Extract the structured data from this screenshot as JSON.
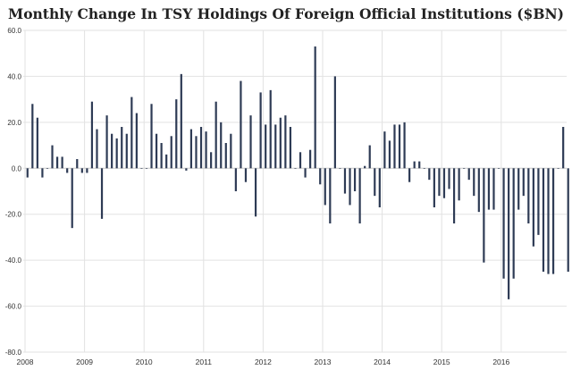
{
  "chart_data": {
    "type": "bar",
    "title": "Monthly Change In TSY Holdings Of Foreign Official Institutions ($BN)",
    "xlabel": "",
    "ylabel": "",
    "ylim": [
      -80,
      60
    ],
    "yticks": [
      "60.0",
      "40.0",
      "20.0",
      "0.0",
      "-20.0",
      "-40.0",
      "-60.0",
      "-80.0"
    ],
    "ytick_values": [
      60,
      40,
      20,
      0,
      -20,
      -40,
      -60,
      -80
    ],
    "xticks": [
      "2008",
      "2009",
      "2010",
      "2011",
      "2012",
      "2013",
      "2014",
      "2015",
      "2016"
    ],
    "xtick_years": [
      2008,
      2009,
      2010,
      2011,
      2012,
      2013,
      2014,
      2015,
      2016
    ],
    "grid": true,
    "legend": "none",
    "bar_color": "#2e3b55",
    "start": "2008-01",
    "values": [
      -4,
      28,
      22,
      -4,
      0,
      10,
      5,
      5,
      -2,
      -26,
      4,
      -2,
      -2,
      29,
      17,
      -22,
      23,
      15,
      13,
      18,
      15,
      31,
      24,
      0,
      0,
      28,
      15,
      11,
      6,
      14,
      30,
      41,
      -1,
      17,
      14,
      18,
      16,
      7,
      29,
      20,
      11,
      15,
      -10,
      38,
      -6,
      23,
      -21,
      33,
      19,
      34,
      19,
      22,
      23,
      18,
      0,
      7,
      -4,
      8,
      53,
      -7,
      -16,
      -24,
      40,
      0,
      -11,
      -16,
      -10,
      -24,
      1,
      10,
      -12,
      -17,
      16,
      12,
      19,
      19,
      20,
      -6,
      3,
      3,
      0,
      -5,
      -17,
      -12,
      -13,
      -9,
      -24,
      -14,
      0,
      -5,
      -12,
      -19,
      -41,
      -18,
      -18,
      0,
      -48,
      -57,
      -48,
      -18,
      -12,
      -24,
      -34,
      -29,
      -45,
      -46,
      -46,
      0,
      18,
      -45
    ]
  }
}
